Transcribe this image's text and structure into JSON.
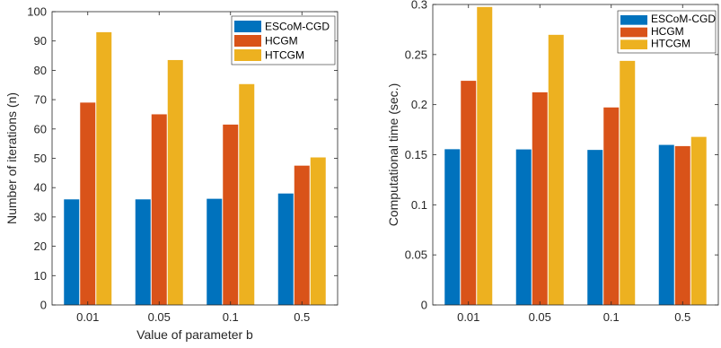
{
  "chart_data": [
    {
      "type": "bar",
      "title": "",
      "xlabel": "Value of parameter b",
      "ylabel": "Number of iterations (n)",
      "categories": [
        "0.01",
        "0.05",
        "0.1",
        "0.5"
      ],
      "ylim": [
        0,
        100
      ],
      "yticks": [
        0,
        10,
        20,
        30,
        40,
        50,
        60,
        70,
        80,
        90,
        100
      ],
      "ytick_labels": [
        "0",
        "10",
        "20",
        "30",
        "40",
        "50",
        "60",
        "70",
        "80",
        "90",
        "100"
      ],
      "grid": false,
      "legend_position": "top-right",
      "series": [
        {
          "name": "ESCoM-CGD",
          "color": "#0072BD",
          "values": [
            36,
            36,
            36.2,
            38
          ]
        },
        {
          "name": "HCGM",
          "color": "#D95319",
          "values": [
            69,
            65,
            61.5,
            47.5
          ]
        },
        {
          "name": "HTCGM",
          "color": "#EDB120",
          "values": [
            93,
            83.5,
            75.3,
            50.3
          ]
        }
      ]
    },
    {
      "type": "bar",
      "title": "",
      "xlabel": "",
      "ylabel": "Computational time (sec.)",
      "categories": [
        "0.01",
        "0.05",
        "0.1",
        "0.5"
      ],
      "ylim": [
        0,
        0.3
      ],
      "yticks": [
        0,
        0.05,
        0.1,
        0.15,
        0.2,
        0.25,
        0.3
      ],
      "ytick_labels": [
        "0",
        "0.05",
        "0.1",
        "0.15",
        "0.2",
        "0.25",
        "0.3"
      ],
      "grid": false,
      "legend_position": "top-right",
      "series": [
        {
          "name": "ESCoM-CGD",
          "color": "#0072BD",
          "values": [
            0.1555,
            0.1553,
            0.1548,
            0.1598
          ]
        },
        {
          "name": "HCGM",
          "color": "#D95319",
          "values": [
            0.2238,
            0.2123,
            0.1972,
            0.1586
          ]
        },
        {
          "name": "HTCGM",
          "color": "#EDB120",
          "values": [
            0.2975,
            0.2697,
            0.2437,
            0.1678
          ]
        }
      ]
    }
  ]
}
